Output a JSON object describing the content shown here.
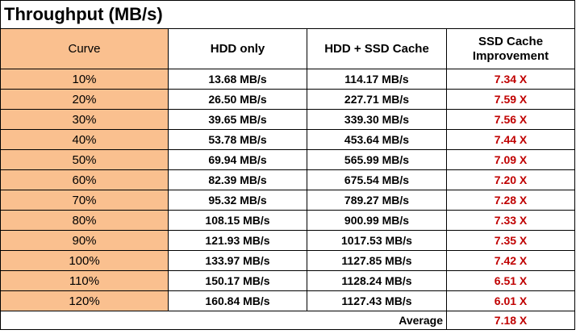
{
  "title": "Throughput (MB/s)",
  "table": {
    "headers": [
      "Curve",
      "HDD only",
      "HDD + SSD Cache",
      "SSD Cache Improvement"
    ],
    "rows": [
      [
        "10%",
        "13.68 MB/s",
        "114.17 MB/s",
        "7.34 X"
      ],
      [
        "20%",
        "26.50 MB/s",
        "227.71 MB/s",
        "7.59 X"
      ],
      [
        "30%",
        "39.65 MB/s",
        "339.30 MB/s",
        "7.56 X"
      ],
      [
        "40%",
        "53.78 MB/s",
        "453.64 MB/s",
        "7.44 X"
      ],
      [
        "50%",
        "69.94 MB/s",
        "565.99 MB/s",
        "7.09 X"
      ],
      [
        "60%",
        "82.39 MB/s",
        "675.54 MB/s",
        "7.20 X"
      ],
      [
        "70%",
        "95.32 MB/s",
        "789.27 MB/s",
        "7.28 X"
      ],
      [
        "80%",
        "108.15 MB/s",
        "900.99 MB/s",
        "7.33 X"
      ],
      [
        "90%",
        "121.93 MB/s",
        "1017.53 MB/s",
        "7.35 X"
      ],
      [
        "100%",
        "133.97 MB/s",
        "1127.85 MB/s",
        "7.42 X"
      ],
      [
        "110%",
        "150.17 MB/s",
        "1128.24 MB/s",
        "6.51 X"
      ],
      [
        "120%",
        "160.84 MB/s",
        "1127.43 MB/s",
        "6.01 X"
      ]
    ],
    "footer": {
      "label": "Average",
      "value": "7.18 X"
    }
  }
}
